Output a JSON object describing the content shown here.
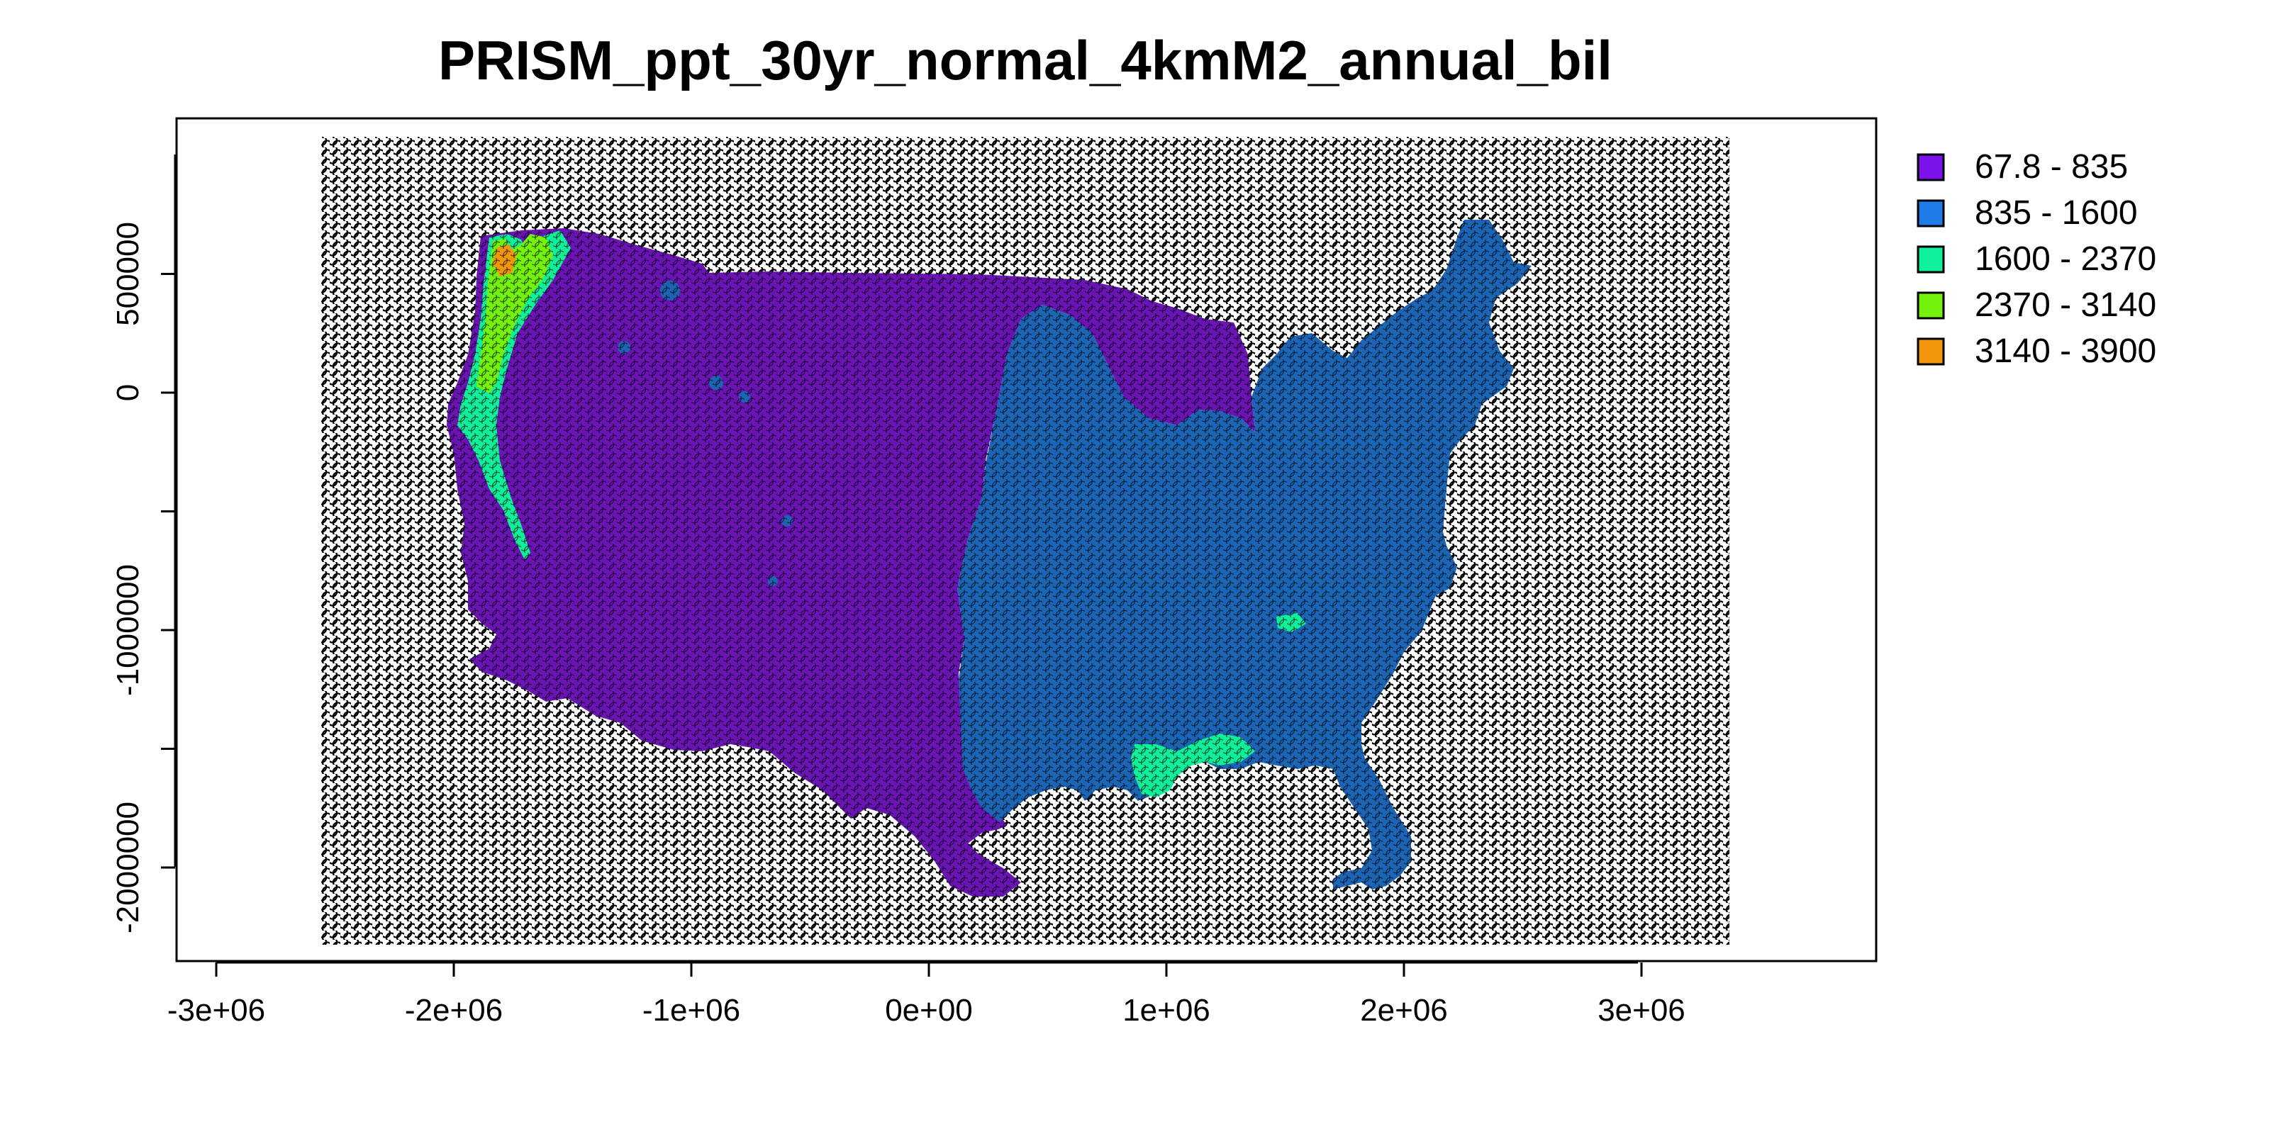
{
  "title": "PRISM_ppt_30yr_normal_4kmM2_annual_bil",
  "x_axis": {
    "ticks": [
      {
        "value": -3000000,
        "label": "-3e+06"
      },
      {
        "value": -2000000,
        "label": "-2e+06"
      },
      {
        "value": -1000000,
        "label": "-1e+06"
      },
      {
        "value": 0,
        "label": "0e+00"
      },
      {
        "value": 1000000,
        "label": "1e+06"
      },
      {
        "value": 2000000,
        "label": "2e+06"
      },
      {
        "value": 3000000,
        "label": "3e+06"
      }
    ]
  },
  "y_axis": {
    "ticks": [
      {
        "value": 500000,
        "label": "500000"
      },
      {
        "value": 0,
        "label": "0"
      },
      {
        "value": -500000,
        "label": ""
      },
      {
        "value": -1000000,
        "label": "-1000000"
      },
      {
        "value": -1500000,
        "label": ""
      },
      {
        "value": -2000000,
        "label": "-2000000"
      }
    ]
  },
  "legend": {
    "placement": "right",
    "items": [
      {
        "label": "67.8 - 835",
        "color": "#7b12ea"
      },
      {
        "label": "835 - 1600",
        "color": "#1e7be8"
      },
      {
        "label": "1600 - 2370",
        "color": "#0ff09a"
      },
      {
        "label": "2370 - 3140",
        "color": "#74f20c"
      },
      {
        "label": "3140 - 3900",
        "color": "#f2960c"
      }
    ]
  },
  "colors": {
    "west_fill": "#6a14b4",
    "east_fill": "#1c64b4",
    "hex_outline": "#000000",
    "background": "#ffffff"
  },
  "map": {
    "grid": "hexagonal",
    "extent": {
      "x_min": -2560000,
      "x_max": 3360000,
      "y_min": -2320000,
      "y_max": 1060000
    }
  }
}
